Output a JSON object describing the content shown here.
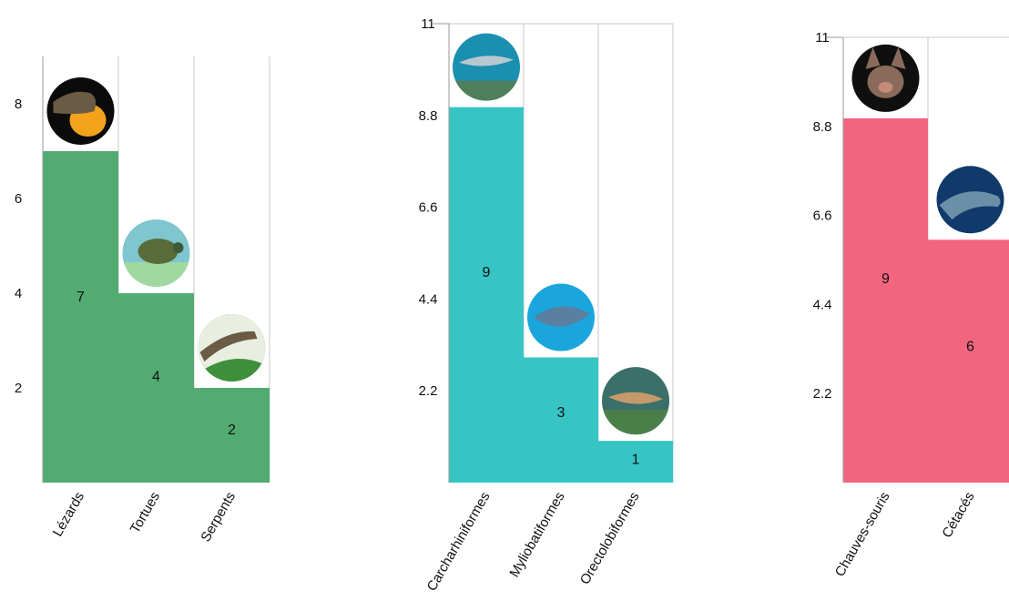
{
  "chart_data": [
    {
      "type": "bar",
      "categories": [
        "Lézards",
        "Tortues",
        "Serpents"
      ],
      "values": [
        7,
        4,
        2
      ],
      "ylim": [
        0,
        9
      ],
      "yticks": [
        2,
        4,
        6,
        8
      ],
      "ytick_labels": [
        "2",
        "4",
        "6",
        "8"
      ],
      "color": "#52ac72",
      "images": [
        "lizard-photo",
        "turtle-photo",
        "snake-photo"
      ],
      "grid": false
    },
    {
      "type": "bar",
      "categories": [
        "Carcharhiniformes",
        "Myliobatiformes",
        "Orectolobiformes"
      ],
      "values": [
        9,
        3,
        1
      ],
      "ylim": [
        0,
        11
      ],
      "yticks": [
        2.2,
        4.4,
        6.6,
        8.8,
        11
      ],
      "ytick_labels": [
        "2.2",
        "4.4",
        "6.6",
        "8.8",
        "11"
      ],
      "color": "#37c4c4",
      "images": [
        "shark-photo",
        "stingray-photo",
        "wobbegong-photo"
      ],
      "grid": false
    },
    {
      "type": "bar",
      "categories": [
        "Chauves-souris",
        "Cétacés"
      ],
      "values": [
        9,
        6
      ],
      "ylim": [
        0,
        11
      ],
      "yticks": [
        2.2,
        4.4,
        6.6,
        8.8,
        11
      ],
      "ytick_labels": [
        "2.2",
        "4.4",
        "6.6",
        "8.8",
        "11"
      ],
      "color": "#f2657f",
      "images": [
        "bat-photo",
        "dolphin-photo"
      ],
      "grid": false
    }
  ]
}
